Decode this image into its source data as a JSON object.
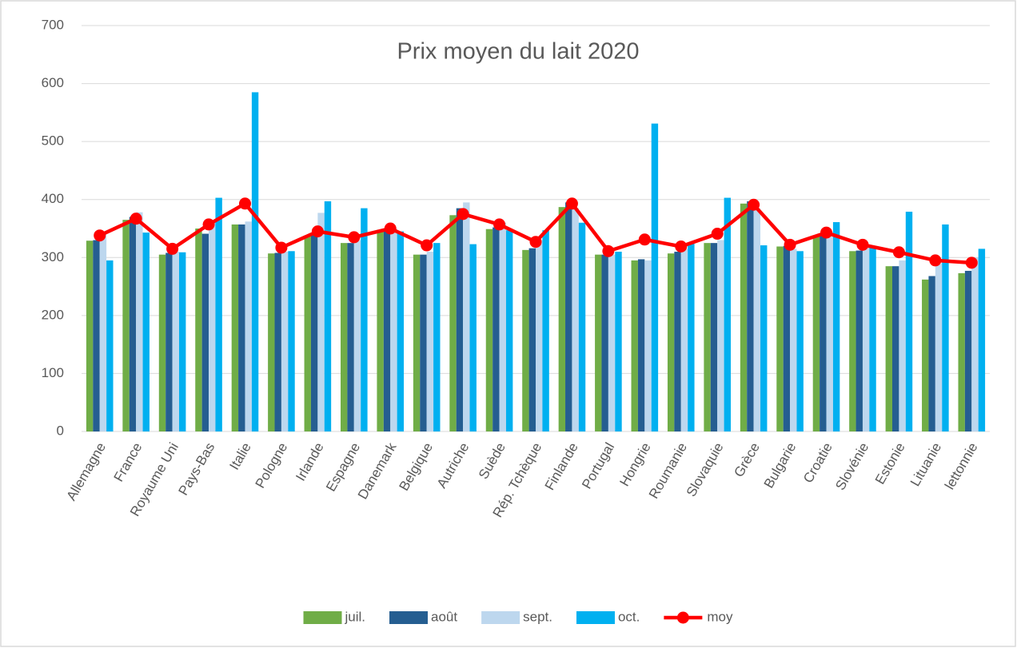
{
  "chart_data": {
    "type": "bar",
    "title": "Prix moyen du lait 2020",
    "categories": [
      "Allemagne",
      "France",
      "Royaume Uni",
      "Pays-Bas",
      "Italie",
      "Pologne",
      "Irlande",
      "Espagne",
      "Danemark",
      "Belgique",
      "Autriche",
      "Suède",
      "Rép. Tchèque",
      "Finlande",
      "Portugal",
      "Hongrie",
      "Roumanie",
      "Slovaquie",
      "Grèce",
      "Bulgarie",
      "Croatie",
      "Slovénie",
      "Estonie",
      "Lituanie",
      "lettonnie"
    ],
    "series": [
      {
        "name": "juil.",
        "color": "#70ad47",
        "values": [
          329,
          365,
          305,
          350,
          357,
          307,
          337,
          325,
          348,
          305,
          373,
          349,
          313,
          387,
          305,
          295,
          307,
          325,
          393,
          319,
          337,
          311,
          285,
          262,
          273
        ]
      },
      {
        "name": "août",
        "color": "#255e91",
        "values": [
          330,
          370,
          308,
          341,
          357,
          308,
          340,
          325,
          350,
          305,
          385,
          352,
          316,
          395,
          305,
          297,
          310,
          325,
          397,
          320,
          340,
          312,
          285,
          268,
          277
        ]
      },
      {
        "name": "sept.",
        "color": "#bdd7ee",
        "values": [
          340,
          378,
          310,
          360,
          362,
          310,
          377,
          330,
          350,
          310,
          395,
          360,
          330,
          385,
          305,
          295,
          315,
          330,
          385,
          315,
          345,
          320,
          295,
          290,
          300
        ]
      },
      {
        "name": "oct.",
        "color": "#00b0f0",
        "values": [
          295,
          343,
          309,
          403,
          585,
          311,
          397,
          385,
          345,
          325,
          323,
          347,
          347,
          360,
          310,
          531,
          325,
          403,
          321,
          311,
          361,
          320,
          379,
          357,
          315
        ]
      },
      {
        "name": "moy",
        "color": "#ff0000",
        "type": "line",
        "values": [
          338,
          367,
          315,
          357,
          393,
          317,
          345,
          335,
          350,
          321,
          375,
          357,
          327,
          393,
          311,
          331,
          319,
          341,
          391,
          322,
          343,
          322,
          309,
          295,
          291
        ]
      }
    ],
    "ylim": [
      0,
      700
    ],
    "yticks": [
      0,
      100,
      200,
      300,
      400,
      500,
      600,
      700
    ],
    "grid": true
  }
}
